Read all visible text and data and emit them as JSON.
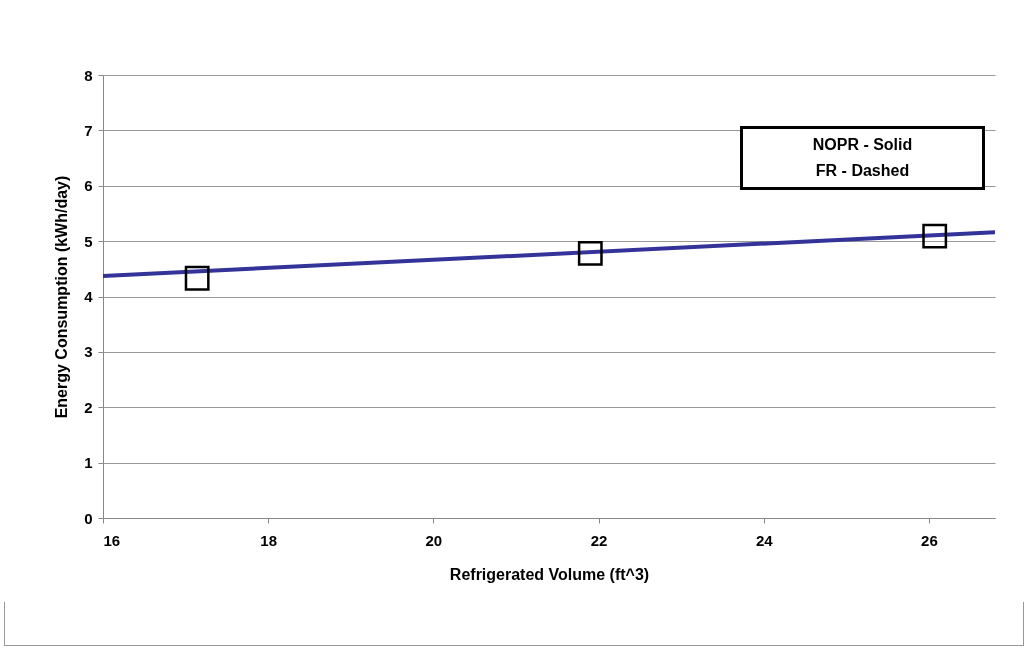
{
  "chart_data": {
    "type": "scatter",
    "xlabel": "Refrigerated Volume (ft^3)",
    "ylabel": "Energy Consumption (kWh/day)",
    "xlim": [
      16,
      26.8
    ],
    "xticks": [
      16,
      18,
      20,
      22,
      24,
      26
    ],
    "ylim": [
      0,
      8
    ],
    "yticks": [
      0,
      1,
      2,
      3,
      4,
      5,
      6,
      7,
      8
    ],
    "grid": "y",
    "annotations": [
      "NOPR - Solid",
      "FR - Dashed"
    ],
    "series": [
      {
        "color": "#000000",
        "marker": "square",
        "x": [
          17.14,
          21.9,
          26.07
        ],
        "values": [
          4.33,
          4.78,
          5.09
        ]
      },
      {
        "type": "line",
        "color": "#333399",
        "line_style": "solid",
        "x": [
          16,
          26.8
        ],
        "values": [
          4.37,
          5.16
        ]
      }
    ]
  }
}
